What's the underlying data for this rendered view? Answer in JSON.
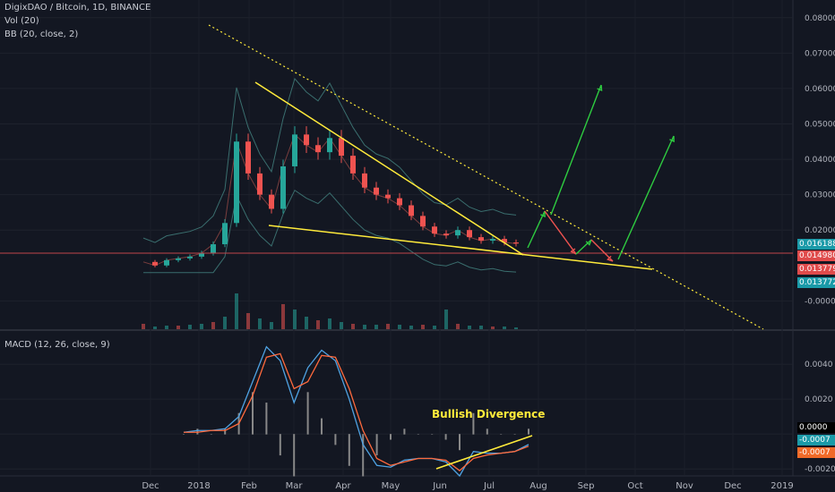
{
  "legend": {
    "title": "DigixDAO / Bitcoin, 1D, BINANCE",
    "vol": "Vol (20)",
    "bb": "BB (20, close, 2)",
    "macd": "MACD (12, 26, close, 9)"
  },
  "annotation": {
    "text": "Bullish Divergence"
  },
  "badges": {
    "price_last": "0.016188",
    "price_bb1": "0.014980",
    "price_bb2": "0.013779",
    "price_bb3": "0.013772",
    "macd_zero": "0.0000",
    "macd_1": "-0.0007",
    "macd_2": "-0.0007"
  },
  "colors": {
    "background": "#131722",
    "up": "#26a69a",
    "down": "#ef5350",
    "trendline": "#ffeb3b",
    "arrow_up": "#2ecc40",
    "arrow_down": "#ef5350",
    "macd_line": "#4fa3e3",
    "signal_line": "#ff6a3d",
    "bb_band": "#3a6e6e",
    "price_line": "#c2444a",
    "badge_teal": "#1a9aa8",
    "badge_red": "#e04b4b",
    "badge_orange": "#f06a28"
  },
  "chart_data": {
    "type": "candlestick",
    "price_axis": {
      "ticks": [
        "0.080000",
        "0.070000",
        "0.060000",
        "0.050000",
        "0.040000",
        "0.030000",
        "0.020000",
        "-0.000000"
      ],
      "ylim": [
        -0.008,
        0.085
      ]
    },
    "macd_axis": {
      "ticks": [
        "0.0040",
        "0.0020",
        "0.0000",
        "-0.0020"
      ],
      "ylim": [
        -0.0024,
        0.0058
      ]
    },
    "x_ticks": [
      "Dec",
      "2018",
      "Feb",
      "Mar",
      "Apr",
      "May",
      "Jun",
      "Jul",
      "Aug",
      "Sep",
      "Oct",
      "Nov",
      "Dec",
      "2019"
    ],
    "price_series": {
      "name": "DigixDAO / Bitcoin",
      "x": [
        "Nov 27",
        "Dec 5",
        "Dec 15",
        "Dec 25",
        "Jan 1",
        "Jan 10",
        "Jan 20",
        "Jan 28",
        "Feb 1",
        "Feb 5",
        "Feb 10",
        "Feb 15",
        "Feb 22",
        "Mar 1",
        "Mar 5",
        "Mar 10",
        "Mar 15",
        "Mar 20",
        "Mar 28",
        "Apr 5",
        "Apr 15",
        "Apr 25",
        "May 1",
        "May 10",
        "May 20",
        "May 28",
        "Jun 1",
        "Jun 5",
        "Jun 10",
        "Jun 20",
        "Jun 30",
        "Jul 10",
        "Jul 20"
      ],
      "values": [
        0.011,
        0.01,
        0.0115,
        0.012,
        0.0125,
        0.0135,
        0.016,
        0.022,
        0.045,
        0.036,
        0.03,
        0.026,
        0.038,
        0.047,
        0.044,
        0.042,
        0.046,
        0.041,
        0.036,
        0.032,
        0.03,
        0.029,
        0.027,
        0.024,
        0.021,
        0.019,
        0.0185,
        0.02,
        0.018,
        0.017,
        0.0175,
        0.0165,
        0.0162
      ]
    },
    "macd_series": [
      {
        "values": [
          0.0001,
          0.0002,
          0.0002,
          0.0003,
          0.001,
          0.003,
          0.005,
          0.0042,
          0.0018,
          0.0038,
          0.0048,
          0.0042,
          0.002,
          -0.0006,
          -0.0018,
          -0.0019,
          -0.0015,
          -0.0014,
          -0.0014,
          -0.0016,
          -0.0024,
          -0.001,
          -0.0011,
          -0.0011,
          -0.001,
          -0.0006
        ]
      },
      {
        "values": [
          0.0001,
          0.0001,
          0.0002,
          0.0002,
          0.0006,
          0.0022,
          0.0044,
          0.0046,
          0.0026,
          0.003,
          0.0045,
          0.0044,
          0.0026,
          0.0002,
          -0.0014,
          -0.0018,
          -0.0016,
          -0.0014,
          -0.0014,
          -0.0015,
          -0.0021,
          -0.0014,
          -0.0012,
          -0.0011,
          -0.001,
          -0.0007
        ]
      }
    ],
    "annotations": [
      "Bullish Divergence"
    ]
  }
}
